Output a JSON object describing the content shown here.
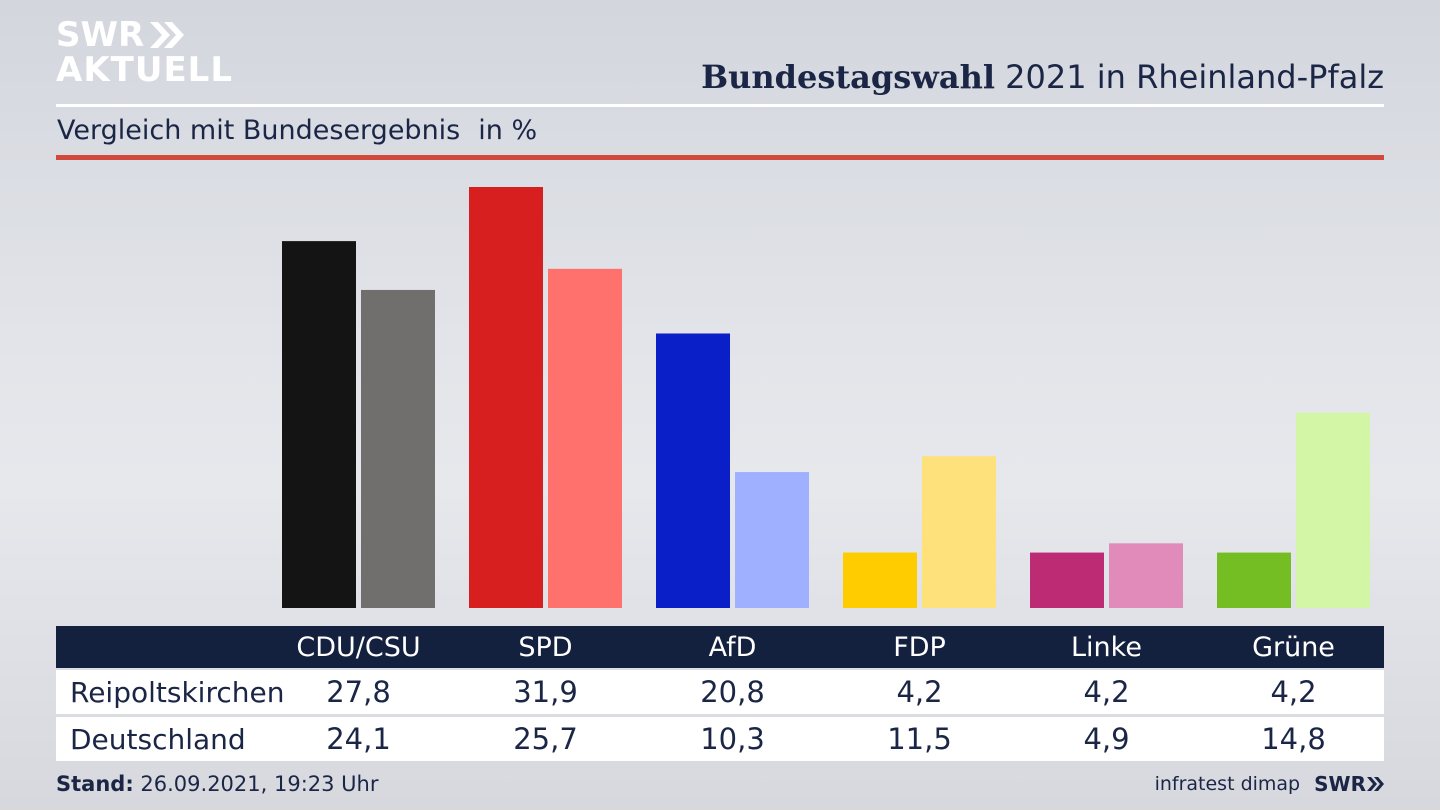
{
  "logo": {
    "line1": "SWR",
    "line2": "AKTUELL"
  },
  "title_bold": "Bundestagswahl",
  "title_rest": " 2021 in Rheinland-Pfalz",
  "subtitle": "Vergleich mit Bundesergebnis",
  "unit": "in %",
  "colors": {
    "local": [
      "#141414",
      "#d71f20",
      "#0a1fc8",
      "#ffcc00",
      "#bd2b75",
      "#74bd22"
    ],
    "national": [
      "#706f6d",
      "#fe716c",
      "#9eb0ff",
      "#fee17a",
      "#e08bb9",
      "#d3f5a6"
    ],
    "header_bg": "#13213f",
    "accent_rule": "#d0493b"
  },
  "chart_data": {
    "type": "bar",
    "categories": [
      "CDU/CSU",
      "SPD",
      "AfD",
      "FDP",
      "Linke",
      "Grüne"
    ],
    "series": [
      {
        "name": "Reipoltskirchen",
        "values": [
          27.8,
          31.9,
          20.8,
          4.2,
          4.2,
          4.2
        ]
      },
      {
        "name": "Deutschland",
        "values": [
          24.1,
          25.7,
          10.3,
          11.5,
          4.9,
          14.8
        ]
      }
    ],
    "value_labels": [
      [
        "27,8",
        "31,9",
        "20,8",
        "4,2",
        "4,2",
        "4,2"
      ],
      [
        "24,1",
        "25,7",
        "10,3",
        "11,5",
        "4,9",
        "14,8"
      ]
    ],
    "ylim": [
      0,
      31.9
    ],
    "grid": false
  },
  "footer": {
    "stand_label": "Stand:",
    "stand_value": " 26.09.2021, 19:23 Uhr",
    "source": "infratest dimap",
    "brand": "SWR"
  }
}
